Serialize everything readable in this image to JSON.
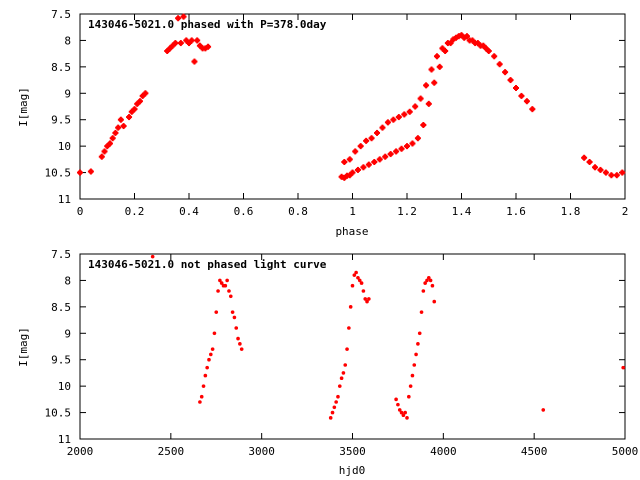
{
  "chart_data": [
    {
      "type": "scatter",
      "title": "143046-5021.0 phased with P=378.0day",
      "xlabel": "phase",
      "ylabel": "I[mag]",
      "xlim": [
        0,
        2
      ],
      "ylim": [
        7.5,
        11
      ],
      "y_inverted": true,
      "xticks": [
        0,
        0.2,
        0.4,
        0.6,
        0.8,
        1,
        1.2,
        1.4,
        1.6,
        1.8,
        2
      ],
      "xtick_labels": [
        "0",
        "0.2",
        "0.4",
        "0.6",
        "0.8",
        "1",
        "1.2",
        "1.4",
        "1.6",
        "1.8",
        "2"
      ],
      "yticks": [
        7.5,
        8,
        8.5,
        9,
        9.5,
        10,
        10.5,
        11
      ],
      "ytick_labels": [
        "7.5",
        "8",
        "8.5",
        "9",
        "9.5",
        "10",
        "10.5",
        "11"
      ],
      "marker": "cross",
      "color": "#ff0000",
      "series": [
        {
          "x": [
            0.0,
            0.04,
            0.08,
            0.09,
            0.1,
            0.11,
            0.12,
            0.13,
            0.14,
            0.15,
            0.16,
            0.18,
            0.19,
            0.2,
            0.21,
            0.22,
            0.23,
            0.24,
            0.32,
            0.33,
            0.34,
            0.35,
            0.36,
            0.37,
            0.38,
            0.39,
            0.4,
            0.41,
            0.42,
            0.43,
            0.44,
            0.45,
            0.46,
            0.47,
            0.96,
            0.97,
            0.98,
            0.99,
            1.0,
            1.02,
            1.04,
            1.06,
            1.08,
            1.1,
            1.12,
            1.14,
            1.16,
            1.18,
            1.2,
            1.22,
            1.24,
            1.26,
            1.28,
            1.3,
            1.32,
            1.34,
            1.36,
            1.38,
            1.4,
            1.42,
            1.44,
            1.46,
            1.48,
            1.5,
            1.52,
            1.54,
            1.56,
            1.58,
            1.6,
            1.62,
            1.64,
            1.66,
            1.85,
            1.87,
            1.89,
            1.91,
            1.93,
            1.95,
            1.97,
            1.99,
            0.97,
            0.99,
            1.01,
            1.03,
            1.05,
            1.07,
            1.09,
            1.11,
            1.13,
            1.15,
            1.17,
            1.19,
            1.21,
            1.23,
            1.25,
            1.27,
            1.29,
            1.31,
            1.33,
            1.35,
            1.37,
            1.39,
            1.41,
            1.43,
            1.45,
            1.47,
            1.49
          ],
          "y": [
            10.5,
            10.48,
            10.2,
            10.1,
            10.0,
            9.95,
            9.85,
            9.75,
            9.65,
            9.5,
            9.62,
            9.45,
            9.35,
            9.3,
            9.2,
            9.15,
            9.05,
            9.0,
            8.2,
            8.15,
            8.1,
            8.05,
            7.58,
            8.05,
            7.55,
            8.0,
            8.05,
            8.0,
            8.4,
            8.0,
            8.1,
            8.15,
            8.15,
            8.12,
            10.58,
            10.6,
            10.56,
            10.55,
            10.5,
            10.45,
            10.4,
            10.35,
            10.3,
            10.25,
            10.2,
            10.15,
            10.1,
            10.05,
            10.0,
            9.95,
            9.85,
            9.6,
            9.2,
            8.8,
            8.5,
            8.2,
            8.05,
            7.95,
            7.9,
            7.92,
            8.0,
            8.05,
            8.1,
            8.2,
            8.3,
            8.45,
            8.6,
            8.75,
            8.9,
            9.05,
            9.15,
            9.3,
            10.22,
            10.3,
            10.4,
            10.45,
            10.5,
            10.55,
            10.55,
            10.5,
            10.3,
            10.25,
            10.1,
            10.0,
            9.9,
            9.85,
            9.75,
            9.65,
            9.55,
            9.5,
            9.45,
            9.4,
            9.35,
            9.25,
            9.1,
            8.85,
            8.55,
            8.3,
            8.15,
            8.05,
            7.98,
            7.92,
            7.95,
            8.0,
            8.05,
            8.1,
            8.15
          ]
        }
      ]
    },
    {
      "type": "scatter",
      "title": "143046-5021.0 not phased light curve",
      "xlabel": "hjd0",
      "ylabel": "I[mag]",
      "xlim": [
        2000,
        5000
      ],
      "ylim": [
        7.5,
        11
      ],
      "y_inverted": true,
      "xticks": [
        2000,
        2500,
        3000,
        3500,
        4000,
        4500,
        5000
      ],
      "xtick_labels": [
        "2000",
        "2500",
        "3000",
        "3500",
        "4000",
        "4500",
        "5000"
      ],
      "yticks": [
        7.5,
        8,
        8.5,
        9,
        9.5,
        10,
        10.5,
        11
      ],
      "ytick_labels": [
        "7.5",
        "8",
        "8.5",
        "9",
        "9.5",
        "10",
        "10.5",
        "11"
      ],
      "marker": "dot",
      "color": "#ff0000",
      "series": [
        {
          "x": [
            2400,
            2660,
            2670,
            2680,
            2690,
            2700,
            2710,
            2720,
            2730,
            2740,
            2750,
            2760,
            2770,
            2780,
            2790,
            2800,
            2810,
            2820,
            2830,
            2840,
            2850,
            2860,
            2870,
            2880,
            2890,
            3380,
            3390,
            3400,
            3410,
            3420,
            3430,
            3440,
            3450,
            3460,
            3470,
            3480,
            3490,
            3500,
            3510,
            3520,
            3530,
            3540,
            3550,
            3560,
            3570,
            3580,
            3590,
            3740,
            3750,
            3760,
            3770,
            3780,
            3790,
            3800,
            3810,
            3820,
            3830,
            3840,
            3850,
            3860,
            3870,
            3880,
            3890,
            3900,
            3910,
            3920,
            3930,
            3940,
            3950,
            4550,
            4990
          ],
          "y": [
            7.55,
            10.3,
            10.2,
            10.0,
            9.8,
            9.65,
            9.5,
            9.4,
            9.3,
            9.0,
            8.6,
            8.2,
            8.0,
            8.05,
            8.1,
            8.1,
            8.0,
            8.2,
            8.3,
            8.6,
            8.7,
            8.9,
            9.1,
            9.2,
            9.3,
            10.6,
            10.5,
            10.4,
            10.3,
            10.2,
            10.0,
            9.85,
            9.75,
            9.6,
            9.3,
            8.9,
            8.5,
            8.1,
            7.9,
            7.85,
            7.95,
            8.0,
            8.05,
            8.2,
            8.35,
            8.4,
            8.35,
            10.25,
            10.35,
            10.45,
            10.5,
            10.55,
            10.5,
            10.6,
            10.2,
            10.0,
            9.8,
            9.6,
            9.4,
            9.2,
            9.0,
            8.6,
            8.2,
            8.05,
            8.0,
            7.95,
            8.0,
            8.1,
            8.4,
            10.45,
            9.65
          ]
        }
      ]
    }
  ]
}
